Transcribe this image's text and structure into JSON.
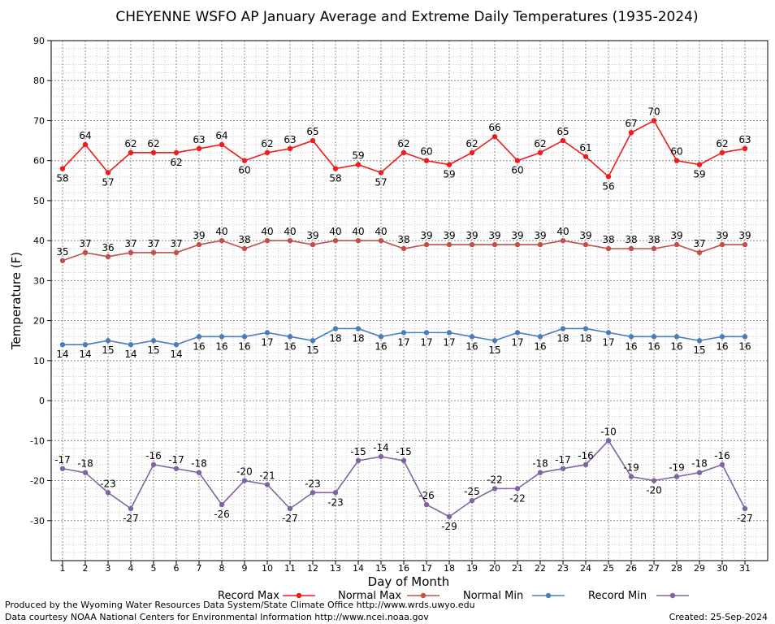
{
  "chart_data": {
    "type": "line",
    "title": "CHEYENNE WSFO AP January Average and Extreme Daily Temperatures (1935-2024)",
    "xlabel": "Day of Month",
    "ylabel": "Temperature (F)",
    "x": [
      1,
      2,
      3,
      4,
      5,
      6,
      7,
      8,
      9,
      10,
      11,
      12,
      13,
      14,
      15,
      16,
      17,
      18,
      19,
      20,
      21,
      22,
      23,
      24,
      25,
      26,
      27,
      28,
      29,
      30,
      31
    ],
    "ylim": [
      -40,
      90
    ],
    "yticks": [
      90,
      80,
      70,
      60,
      50,
      40,
      30,
      20,
      10,
      0,
      -10,
      -20,
      -30
    ],
    "grid": true,
    "series": [
      {
        "name": "Record Max",
        "color": "#ee1c1c",
        "values": [
          58,
          64,
          57,
          62,
          62,
          62,
          63,
          64,
          60,
          62,
          63,
          65,
          58,
          59,
          57,
          62,
          60,
          59,
          62,
          66,
          60,
          62,
          65,
          61,
          56,
          67,
          70,
          60,
          59,
          62,
          63
        ]
      },
      {
        "name": "Normal Max",
        "color": "#c0504d",
        "values": [
          35,
          37,
          36,
          37,
          37,
          37,
          39,
          40,
          38,
          40,
          40,
          39,
          40,
          40,
          40,
          38,
          39,
          39,
          39,
          39,
          39,
          39,
          40,
          39,
          38,
          38,
          38,
          39,
          37,
          39,
          39
        ]
      },
      {
        "name": "Normal Min",
        "color": "#4a7ebb",
        "values": [
          14,
          14,
          15,
          14,
          15,
          14,
          16,
          16,
          16,
          17,
          16,
          15,
          18,
          18,
          16,
          17,
          17,
          17,
          16,
          15,
          17,
          16,
          18,
          18,
          17,
          16,
          16,
          16,
          15,
          16,
          16
        ]
      },
      {
        "name": "Record Min",
        "color": "#8064a2",
        "values": [
          -17,
          -18,
          -23,
          -27,
          -16,
          -17,
          -18,
          -26,
          -20,
          -21,
          -27,
          -23,
          -23,
          -15,
          -14,
          -15,
          -26,
          -29,
          -25,
          -22,
          -22,
          -18,
          -17,
          -16,
          -10,
          -19,
          -20,
          -19,
          -18,
          -16,
          -27
        ]
      }
    ]
  },
  "footer": {
    "produced_by": "Produced by the Wyoming Water Resources Data System/State Climate Office http://www.wrds.uwyo.edu",
    "courtesy": "Data courtesy NOAA National Centers for Environmental Information http://www.ncei.noaa.gov",
    "created": "Created:  25-Sep-2024"
  }
}
